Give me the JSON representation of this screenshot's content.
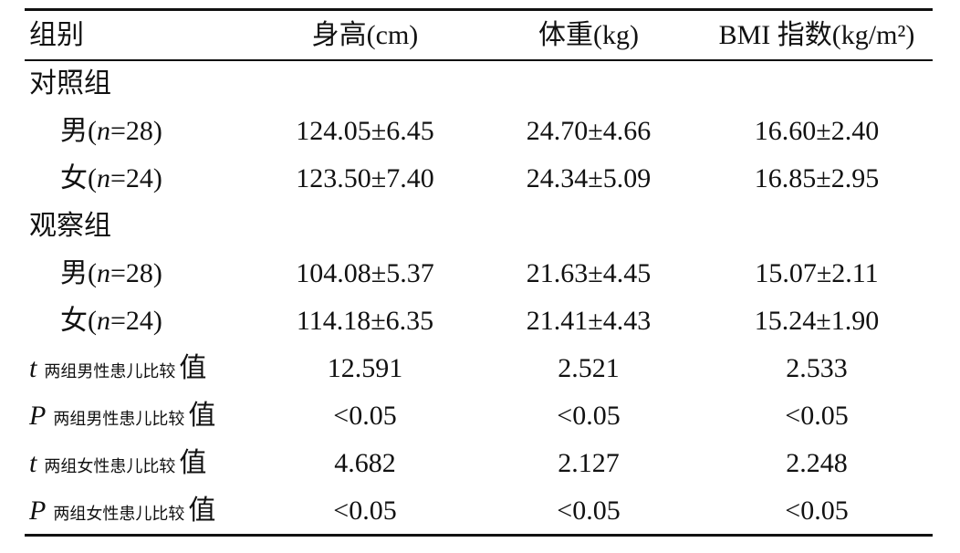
{
  "table": {
    "header": [
      "组别",
      "身高(cm)",
      "体重(kg)",
      "BMI 指数(kg/m²)"
    ],
    "rows": [
      {
        "group": "对照组"
      },
      {
        "label": {
          "prefix": "男(",
          "italic": "n",
          "suffix": "=28)"
        },
        "cells": [
          "124.05±6.45",
          "24.70±4.66",
          "16.60±2.40"
        ]
      },
      {
        "label": {
          "prefix": "女(",
          "italic": "n",
          "suffix": "=24)"
        },
        "cells": [
          "123.50±7.40",
          "24.34±5.09",
          "16.85±2.95"
        ]
      },
      {
        "group": "观察组"
      },
      {
        "label": {
          "prefix": "男(",
          "italic": "n",
          "suffix": "=28)"
        },
        "cells": [
          "104.08±5.37",
          "21.63±4.45",
          "15.07±2.11"
        ]
      },
      {
        "label": {
          "prefix": "女(",
          "italic": "n",
          "suffix": "=24)"
        },
        "cells": [
          "114.18±6.35",
          "21.41±4.43",
          "15.24±1.90"
        ]
      },
      {
        "label": {
          "symbol": "t",
          "subscript": "两组男性患儿比较",
          "suffix": "值"
        },
        "cells": [
          "12.591",
          "2.521",
          "2.533"
        ]
      },
      {
        "label": {
          "symbol": "P",
          "subscript": "两组男性患儿比较",
          "suffix": "值"
        },
        "cells": [
          "<0.05",
          "<0.05",
          "<0.05"
        ]
      },
      {
        "label": {
          "symbol": "t",
          "subscript": "两组女性患儿比较",
          "suffix": "值"
        },
        "cells": [
          "4.682",
          "2.127",
          "2.248"
        ]
      },
      {
        "label": {
          "symbol": "P",
          "subscript": "两组女性患儿比较",
          "suffix": "值"
        },
        "cells": [
          "<0.05",
          "<0.05",
          "<0.05"
        ]
      }
    ]
  }
}
